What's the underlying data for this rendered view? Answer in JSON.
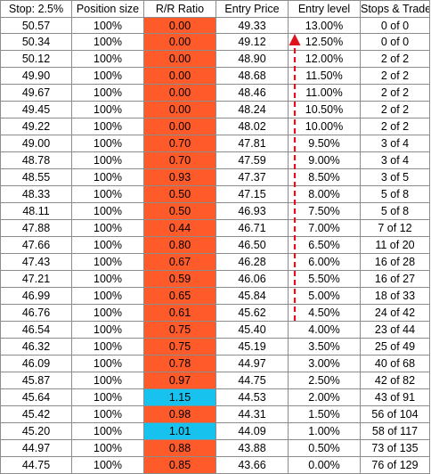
{
  "headers": [
    "Stop: 2.5%",
    "Position size",
    "R/R Ratio",
    "Entry Price",
    "Entry level",
    "Stops & Trades"
  ],
  "colors": {
    "rr_red": "#ff5a2a",
    "rr_blue": "#17c3ee",
    "arrow": "#e0121b"
  },
  "rows": [
    {
      "stop": "50.57",
      "size": "100%",
      "rr": "0.00",
      "rr_color": "red",
      "entry": "49.33",
      "level": "13.00%",
      "trades": "0 of 0"
    },
    {
      "stop": "50.34",
      "size": "100%",
      "rr": "0.00",
      "rr_color": "red",
      "entry": "49.12",
      "level": "12.50%",
      "trades": "0 of 0"
    },
    {
      "stop": "50.12",
      "size": "100%",
      "rr": "0.00",
      "rr_color": "red",
      "entry": "48.90",
      "level": "12.00%",
      "trades": "2 of 2"
    },
    {
      "stop": "49.90",
      "size": "100%",
      "rr": "0.00",
      "rr_color": "red",
      "entry": "48.68",
      "level": "11.50%",
      "trades": "2 of 2"
    },
    {
      "stop": "49.67",
      "size": "100%",
      "rr": "0.00",
      "rr_color": "red",
      "entry": "48.46",
      "level": "11.00%",
      "trades": "2 of 2"
    },
    {
      "stop": "49.45",
      "size": "100%",
      "rr": "0.00",
      "rr_color": "red",
      "entry": "48.24",
      "level": "10.50%",
      "trades": "2 of 2"
    },
    {
      "stop": "49.22",
      "size": "100%",
      "rr": "0.00",
      "rr_color": "red",
      "entry": "48.02",
      "level": "10.00%",
      "trades": "2 of 2"
    },
    {
      "stop": "49.00",
      "size": "100%",
      "rr": "0.70",
      "rr_color": "red",
      "entry": "47.81",
      "level": "9.50%",
      "trades": "3 of 4"
    },
    {
      "stop": "48.78",
      "size": "100%",
      "rr": "0.70",
      "rr_color": "red",
      "entry": "47.59",
      "level": "9.00%",
      "trades": "3 of 4"
    },
    {
      "stop": "48.55",
      "size": "100%",
      "rr": "0.93",
      "rr_color": "red",
      "entry": "47.37",
      "level": "8.50%",
      "trades": "3 of 5"
    },
    {
      "stop": "48.33",
      "size": "100%",
      "rr": "0.50",
      "rr_color": "red",
      "entry": "47.15",
      "level": "8.00%",
      "trades": "5 of 8"
    },
    {
      "stop": "48.11",
      "size": "100%",
      "rr": "0.50",
      "rr_color": "red",
      "entry": "46.93",
      "level": "7.50%",
      "trades": "5 of 8"
    },
    {
      "stop": "47.88",
      "size": "100%",
      "rr": "0.44",
      "rr_color": "red",
      "entry": "46.71",
      "level": "7.00%",
      "trades": "7 of 12"
    },
    {
      "stop": "47.66",
      "size": "100%",
      "rr": "0.80",
      "rr_color": "red",
      "entry": "46.50",
      "level": "6.50%",
      "trades": "11 of 20"
    },
    {
      "stop": "47.43",
      "size": "100%",
      "rr": "0.67",
      "rr_color": "red",
      "entry": "46.28",
      "level": "6.00%",
      "trades": "16 of 28"
    },
    {
      "stop": "47.21",
      "size": "100%",
      "rr": "0.59",
      "rr_color": "red",
      "entry": "46.06",
      "level": "5.50%",
      "trades": "16 of 27"
    },
    {
      "stop": "46.99",
      "size": "100%",
      "rr": "0.65",
      "rr_color": "red",
      "entry": "45.84",
      "level": "5.00%",
      "trades": "18 of 33"
    },
    {
      "stop": "46.76",
      "size": "100%",
      "rr": "0.61",
      "rr_color": "red",
      "entry": "45.62",
      "level": "4.50%",
      "trades": "24 of 42"
    },
    {
      "stop": "46.54",
      "size": "100%",
      "rr": "0.75",
      "rr_color": "red",
      "entry": "45.40",
      "level": "4.00%",
      "trades": "23 of 44"
    },
    {
      "stop": "46.32",
      "size": "100%",
      "rr": "0.75",
      "rr_color": "red",
      "entry": "45.19",
      "level": "3.50%",
      "trades": "25 of 49"
    },
    {
      "stop": "46.09",
      "size": "100%",
      "rr": "0.78",
      "rr_color": "red",
      "entry": "44.97",
      "level": "3.00%",
      "trades": "40 of 68"
    },
    {
      "stop": "45.87",
      "size": "100%",
      "rr": "0.97",
      "rr_color": "red",
      "entry": "44.75",
      "level": "2.50%",
      "trades": "42 of 82"
    },
    {
      "stop": "45.64",
      "size": "100%",
      "rr": "1.15",
      "rr_color": "blue",
      "entry": "44.53",
      "level": "2.00%",
      "trades": "43 of 91"
    },
    {
      "stop": "45.42",
      "size": "100%",
      "rr": "0.98",
      "rr_color": "red",
      "entry": "44.31",
      "level": "1.50%",
      "trades": "56 of 104"
    },
    {
      "stop": "45.20",
      "size": "100%",
      "rr": "1.01",
      "rr_color": "blue",
      "entry": "44.09",
      "level": "1.00%",
      "trades": "58 of 117"
    },
    {
      "stop": "44.97",
      "size": "100%",
      "rr": "0.88",
      "rr_color": "red",
      "entry": "43.88",
      "level": "0.50%",
      "trades": "73 of 135"
    },
    {
      "stop": "44.75",
      "size": "100%",
      "rr": "0.85",
      "rr_color": "red",
      "entry": "43.66",
      "level": "0.00%",
      "trades": "76 of 129"
    }
  ]
}
